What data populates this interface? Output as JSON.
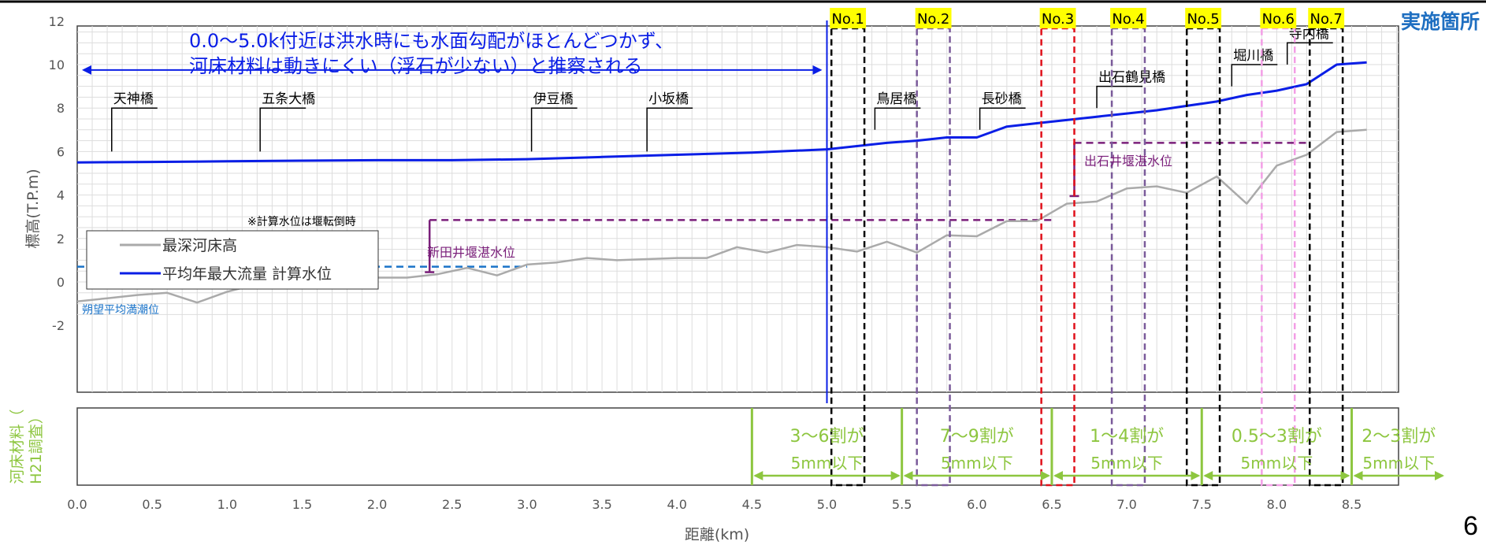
{
  "page_number": "6",
  "implementation_label": "実施箇所",
  "annotation": {
    "line1": "0.0～5.0k付近は洪水時にも水面勾配がほとんどつかず、",
    "line2": "河床材料は動きにくい（浮石が少ない）と推察される"
  },
  "calc_note": "※計算水位は堰転倒時",
  "legend": {
    "bed": "最深河床高",
    "water": "平均年最大流量 計算水位"
  },
  "reference_labels": {
    "tide": "朔望平均満潮位",
    "nitta_weir": "新田井堰湛水位",
    "deishi_weir": "出石井堰湛水位"
  },
  "bottom_panel_label": {
    "line1": "河床材料（",
    "line2": "H21調査）"
  },
  "colors": {
    "water": "#0a1ee6",
    "bed": "#aaaaaa",
    "tide": "#1a73c8",
    "weir": "#7a1f7a",
    "green": "#8dc63f",
    "yellow": "#ffff00",
    "axis_text": "#555555"
  },
  "chart_data": {
    "type": "line",
    "xlabel": "距離(km)",
    "ylabel": "標高(T.P.m)",
    "xlim": [
      0,
      8.8
    ],
    "ylim": [
      -2,
      12
    ],
    "x_ticks": [
      "0.0",
      "0.5",
      "1.0",
      "1.5",
      "2.0",
      "2.5",
      "3.0",
      "3.5",
      "4.0",
      "4.5",
      "5.0",
      "5.5",
      "6.0",
      "6.5",
      "7.0",
      "7.5",
      "8.0",
      "8.5"
    ],
    "y_ticks": [
      "-2",
      "0",
      "2",
      "4",
      "6",
      "8",
      "10",
      "12"
    ],
    "grid": true,
    "legend_position": "left-middle",
    "series": [
      {
        "name": "最深河床高",
        "x": [
          0.0,
          0.2,
          0.4,
          0.6,
          0.8,
          1.0,
          1.2,
          1.4,
          1.6,
          1.8,
          2.0,
          2.2,
          2.4,
          2.6,
          2.8,
          3.0,
          3.2,
          3.4,
          3.6,
          3.8,
          4.0,
          4.2,
          4.4,
          4.6,
          4.8,
          5.0,
          5.2,
          5.4,
          5.6,
          5.8,
          6.0,
          6.2,
          6.4,
          6.6,
          6.8,
          7.0,
          7.2,
          7.4,
          7.6,
          7.8,
          8.0,
          8.2,
          8.4,
          8.6
        ],
        "y": [
          -0.9,
          -0.75,
          -0.6,
          -0.5,
          -0.95,
          -0.45,
          -0.1,
          0.05,
          -0.15,
          -0.05,
          0.2,
          0.2,
          0.35,
          0.65,
          0.3,
          0.8,
          0.9,
          1.1,
          1.0,
          1.05,
          1.1,
          1.1,
          1.6,
          1.35,
          1.7,
          1.6,
          1.4,
          1.85,
          1.35,
          2.15,
          2.1,
          2.8,
          2.8,
          3.6,
          3.7,
          4.3,
          4.4,
          4.1,
          4.85,
          3.6,
          5.35,
          5.85,
          6.9,
          7.0
        ]
      },
      {
        "name": "平均年最大流量 計算水位",
        "x": [
          0.0,
          0.5,
          1.0,
          1.5,
          2.0,
          2.5,
          3.0,
          3.5,
          4.0,
          4.5,
          5.0,
          5.2,
          5.4,
          5.6,
          5.8,
          6.0,
          6.2,
          6.4,
          6.6,
          6.8,
          7.0,
          7.2,
          7.4,
          7.6,
          7.8,
          8.0,
          8.2,
          8.4,
          8.6
        ],
        "y": [
          5.5,
          5.52,
          5.55,
          5.58,
          5.6,
          5.6,
          5.65,
          5.75,
          5.85,
          5.95,
          6.1,
          6.25,
          6.4,
          6.5,
          6.65,
          6.65,
          7.15,
          7.3,
          7.45,
          7.6,
          7.75,
          7.9,
          8.1,
          8.3,
          8.6,
          8.8,
          9.1,
          10.0,
          10.1
        ]
      }
    ],
    "reference_lines": [
      {
        "label": "朔望平均満潮位",
        "y": 0.7,
        "x_from": 0.0,
        "x_to": 3.0
      },
      {
        "label": "新田井堰湛水位",
        "y": 2.85,
        "x_from": 2.35,
        "x_to": 6.5
      },
      {
        "label": "出石井堰湛水位",
        "y": 6.4,
        "x_from": 6.65,
        "x_to": 8.2
      }
    ],
    "weir_drops": [
      {
        "x": 2.35,
        "y_top": 2.85,
        "y_bottom": 0.45
      },
      {
        "x": 6.65,
        "y_top": 6.4,
        "y_bottom": 3.95
      }
    ],
    "bridges": [
      {
        "name": "天神橋",
        "x": 0.23,
        "y_base": 6.0,
        "y_top": 8.0
      },
      {
        "name": "五条大橋",
        "x": 1.22,
        "y_base": 6.0,
        "y_top": 8.0
      },
      {
        "name": "伊豆橋",
        "x": 3.03,
        "y_base": 6.0,
        "y_top": 8.0
      },
      {
        "name": "小坂橋",
        "x": 3.8,
        "y_base": 6.0,
        "y_top": 8.0
      },
      {
        "name": "鳥居橋",
        "x": 5.32,
        "y_base": 7.0,
        "y_top": 8.0
      },
      {
        "name": "長砂橋",
        "x": 6.02,
        "y_base": 7.0,
        "y_top": 8.0
      },
      {
        "name": "出石鶴見橋",
        "x": 6.8,
        "y_base": 8.0,
        "y_top": 9.0
      },
      {
        "name": "堀川橋",
        "x": 7.7,
        "y_base": 9.0,
        "y_top": 10.0
      },
      {
        "name": "寺内橋",
        "x": 8.07,
        "y_base": 10.0,
        "y_top": 11.0
      }
    ],
    "survey_boxes": [
      {
        "label": "No.1",
        "x1": 5.03,
        "x2": 5.25,
        "color": "#000000"
      },
      {
        "label": "No.2",
        "x1": 5.6,
        "x2": 5.82,
        "color": "#7a5a9a"
      },
      {
        "label": "No.3",
        "x1": 6.43,
        "x2": 6.65,
        "color": "#e0101a"
      },
      {
        "label": "No.4",
        "x1": 6.9,
        "x2": 7.12,
        "color": "#7a5a9a"
      },
      {
        "label": "No.5",
        "x1": 7.4,
        "x2": 7.62,
        "color": "#000000"
      },
      {
        "label": "No.6",
        "x1": 7.9,
        "x2": 8.12,
        "color": "#f39ee6"
      },
      {
        "label": "No.7",
        "x1": 8.22,
        "x2": 8.44,
        "color": "#000000"
      }
    ],
    "boundary_5k": 5.0,
    "material_ranges": [
      {
        "x1": 4.5,
        "x2": 5.5,
        "line1": "3～6割が",
        "line2": "5mm以下"
      },
      {
        "x1": 5.5,
        "x2": 6.5,
        "line1": "7～9割が",
        "line2": "5mm以下"
      },
      {
        "x1": 6.5,
        "x2": 7.5,
        "line1": "1～4割が",
        "line2": "5mm以下"
      },
      {
        "x1": 7.5,
        "x2": 8.5,
        "line1": "0.5～3割が",
        "line2": "5mm以下"
      },
      {
        "x1": 8.5,
        "x2": 9.15,
        "line1": "2～3割が",
        "line2": "5mm以下"
      }
    ],
    "annotation_arrow": {
      "x_from": 0.0,
      "x_to": 5.0,
      "y": 9.75
    }
  }
}
